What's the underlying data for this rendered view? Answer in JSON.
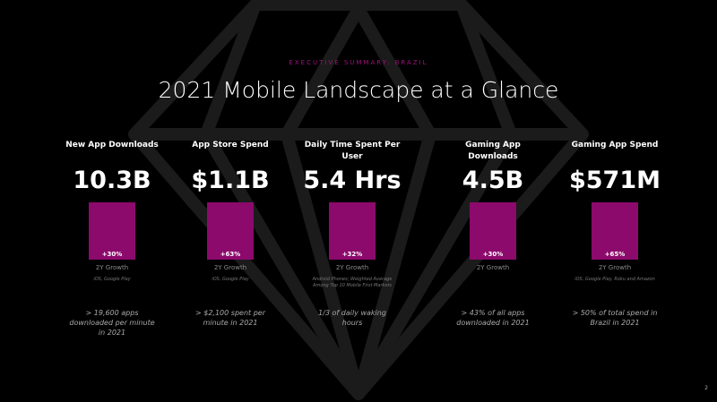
{
  "header": {
    "eyebrow": "EXECUTIVE SUMMARY: BRAZIL",
    "title": "2021 Mobile Landscape at a Glance"
  },
  "metrics": [
    {
      "label": "New App Downloads",
      "value": "10.3B",
      "growth": "+30%",
      "growth_label": "2Y Growth",
      "source": "iOS, Google Play",
      "note": "> 19,600 apps downloaded per minute in 2021"
    },
    {
      "label": "App Store Spend",
      "value": "$1.1B",
      "growth": "+63%",
      "growth_label": "2Y Growth",
      "source": "iOS, Google Play",
      "note": "> $2,100 spent per minute in 2021"
    },
    {
      "label": "Daily Time Spent Per User",
      "value": "5.4 Hrs",
      "growth": "+32%",
      "growth_label": "2Y Growth",
      "source": "Android Phones; Weighted Average Among Top 10 Mobile First Markets",
      "note": "1/3 of daily waking hours"
    },
    {
      "label": "Gaming App Downloads",
      "value": "4.5B",
      "growth": "+30%",
      "growth_label": "2Y Growth",
      "source": null,
      "note": "> 43% of all apps downloaded in 2021"
    },
    {
      "label": "Gaming App Spend",
      "value": "$571M",
      "growth": "+65%",
      "growth_label": "2Y Growth",
      "source": "iOS, Google Play, Roku and Amazon",
      "note": "> 50% of total spend in Brazil in 2021"
    }
  ],
  "page_number": "2"
}
